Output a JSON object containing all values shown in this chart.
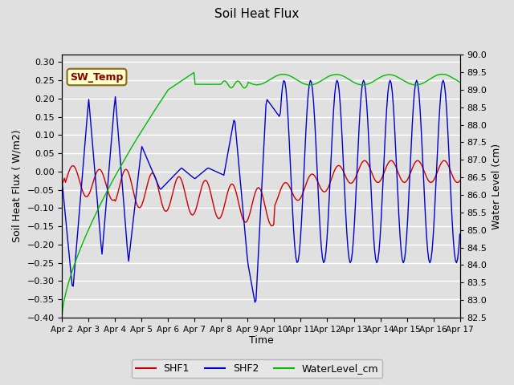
{
  "title": "Soil Heat Flux",
  "ylabel_left": "Soil Heat Flux ( W/m2)",
  "ylabel_right": "Water Level (cm)",
  "xlabel": "Time",
  "ylim_left": [
    -0.4,
    0.32
  ],
  "ylim_right": [
    82.5,
    90.0
  ],
  "background_color": "#e0e0e0",
  "sw_temp_label": "SW_Temp",
  "legend_labels": [
    "SHF1",
    "SHF2",
    "WaterLevel_cm"
  ],
  "shf1_color": "#cc0000",
  "shf2_color": "#0000cc",
  "water_color": "#00bb00",
  "xtick_labels": [
    "Apr 2",
    "Apr 3",
    "Apr 4",
    "Apr 5",
    "Apr 6",
    "Apr 7",
    "Apr 8",
    "Apr 9",
    "Apr 10",
    "Apr 11",
    "Apr 12",
    "Apr 13",
    "Apr 14",
    "Apr 15",
    "Apr 16",
    "Apr 17"
  ],
  "yticks_left": [
    -0.4,
    -0.35,
    -0.3,
    -0.25,
    -0.2,
    -0.15,
    -0.1,
    -0.05,
    0.0,
    0.05,
    0.1,
    0.15,
    0.2,
    0.25,
    0.3
  ],
  "yticks_right": [
    82.5,
    83.0,
    83.5,
    84.0,
    84.5,
    85.0,
    85.5,
    86.0,
    86.5,
    87.0,
    87.5,
    88.0,
    88.5,
    89.0,
    89.5,
    90.0
  ],
  "n_days": 15,
  "n_points": 360
}
